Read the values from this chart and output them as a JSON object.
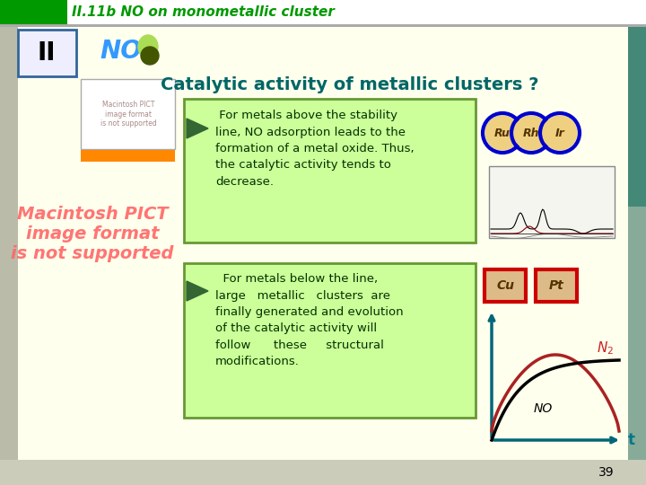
{
  "title_bar": "II.11b NO on monometallic cluster",
  "title_bar_color": "#009900",
  "slide_bg": "#FFFFEE",
  "header_text": "Catalytic activity of metallic clusters ?",
  "header_color": "#006666",
  "box1_text": " For metals above the stability\nline, NO adsorption leads to the\nformation of a metal oxide. Thus,\nthe catalytic activity tends to\ndecrease.",
  "box2_text": "  For metals below the line,\nlarge   metallic   clusters  are\nfinally generated and evolution\nof the catalytic activity will\nfollow      these     structural\nmodifications.",
  "box_bg": "#CCFF99",
  "box_border": "#669933",
  "text_color": "#003300",
  "arrow_color": "#336633",
  "slide_num": "39",
  "roman_num": "II",
  "roman_bg": "#EEEEFF",
  "roman_border": "#336699",
  "no_color": "#3399FF",
  "macpict_color": "#FF6666",
  "left_accent_color": "#FF8800",
  "metals_above": [
    "Ru",
    "Rh",
    "Ir"
  ],
  "metals_above_border": "#0000CC",
  "metals_below": [
    "Cu",
    "Pt"
  ],
  "metals_below_border": "#CC0000",
  "teal_side_color": "#448877",
  "right_side_color": "#99AAAA",
  "bottom_bar_color": "#CCCCBB",
  "left_col_bg": "#BBBBAA",
  "title_bg": "#FFFFFF"
}
